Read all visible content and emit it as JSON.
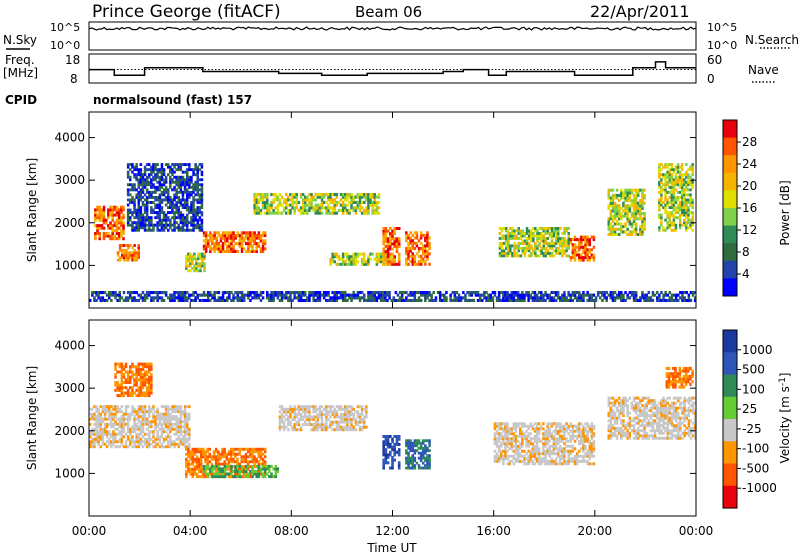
{
  "header": {
    "station": "Prince George (fitACF)",
    "beam": "Beam 06",
    "date": "22/Apr/2011"
  },
  "labels": {
    "nsky": "N.Sky",
    "nsearch": "N.Search",
    "freq": "Freq.",
    "freq_unit": "[MHz]",
    "nave": "Nave",
    "cpid": "CPID",
    "cpid_value": "normalsound (fast) 157"
  },
  "chart_data": [
    {
      "type": "line",
      "panel": "noise",
      "y_left_ticks": [
        "10^5",
        "10^0"
      ],
      "y_right_ticks": [
        "10^5",
        "10^0"
      ],
      "series": [
        {
          "name": "N.Sky",
          "style": "solid"
        },
        {
          "name": "N.Search",
          "style": "dotted"
        }
      ]
    },
    {
      "type": "line",
      "panel": "frequency",
      "y_left_ticks": [
        "18",
        "8"
      ],
      "y_right_ticks": [
        "60",
        "0"
      ],
      "series": [
        {
          "name": "Freq.",
          "style": "solid",
          "x_hours": [
            0,
            1,
            2.2,
            4.5,
            7.5,
            9.2,
            11,
            14,
            14.8,
            15.8,
            16.5,
            19.2,
            21.5,
            22.4,
            22.8,
            24
          ],
          "values_mhz": [
            13,
            10,
            14,
            12,
            11,
            10,
            11,
            12,
            13,
            10,
            12,
            10,
            14,
            17,
            14,
            14
          ]
        },
        {
          "name": "Nave",
          "style": "dotted",
          "x_hours": [
            0,
            24
          ],
          "values": [
            28,
            28
          ]
        }
      ]
    },
    {
      "type": "heatmap",
      "panel": "power",
      "xlabel": "",
      "ylabel": "Slant Range [km]",
      "xlim_hours": [
        0,
        24
      ],
      "ylim": [
        0,
        4600
      ],
      "yticks": [
        1000,
        2000,
        3000,
        4000
      ],
      "colorbar": {
        "label": "Power [dB]",
        "ticks": [
          "28",
          "24",
          "20",
          "16",
          "12",
          "8",
          "4"
        ],
        "colors": [
          "#e8000c",
          "#ff5500",
          "#ff9500",
          "#f5b400",
          "#e0e000",
          "#7fd04a",
          "#2e8b57",
          "#2e6b3e",
          "#2244aa",
          "#0000ff"
        ]
      },
      "regions": [
        {
          "t0": 0.2,
          "t1": 1.4,
          "r0": 1600,
          "r1": 2400,
          "level": "high"
        },
        {
          "t0": 1.1,
          "t1": 2.0,
          "r0": 1100,
          "r1": 1500,
          "level": "high"
        },
        {
          "t0": 1.5,
          "t1": 4.5,
          "r0": 1800,
          "r1": 3400,
          "level": "low"
        },
        {
          "t0": 3.8,
          "t1": 4.6,
          "r0": 850,
          "r1": 1300,
          "level": "mid"
        },
        {
          "t0": 4.5,
          "t1": 7.0,
          "r0": 1300,
          "r1": 1800,
          "level": "high"
        },
        {
          "t0": 6.5,
          "t1": 11.5,
          "r0": 2200,
          "r1": 2700,
          "level": "mid"
        },
        {
          "t0": 9.5,
          "t1": 12.0,
          "r0": 1000,
          "r1": 1300,
          "level": "mid"
        },
        {
          "t0": 11.6,
          "t1": 12.3,
          "r0": 1000,
          "r1": 1900,
          "level": "high"
        },
        {
          "t0": 12.5,
          "t1": 13.5,
          "r0": 1000,
          "r1": 1800,
          "level": "high"
        },
        {
          "t0": 16.2,
          "t1": 19.0,
          "r0": 1200,
          "r1": 1900,
          "level": "mid"
        },
        {
          "t0": 19.0,
          "t1": 20.0,
          "r0": 1100,
          "r1": 1700,
          "level": "high"
        },
        {
          "t0": 20.5,
          "t1": 22.0,
          "r0": 1700,
          "r1": 2800,
          "level": "mid"
        },
        {
          "t0": 22.5,
          "t1": 23.9,
          "r0": 1800,
          "r1": 3400,
          "level": "mid"
        },
        {
          "t0": 0.0,
          "t1": 24.0,
          "r0": 150,
          "r1": 400,
          "level": "low"
        }
      ]
    },
    {
      "type": "heatmap",
      "panel": "velocity",
      "xlabel": "Time UT",
      "ylabel": "Slant Range [km]",
      "xlim_hours": [
        0,
        24
      ],
      "ylim": [
        0,
        4600
      ],
      "xticks": [
        "00:00",
        "04:00",
        "08:00",
        "12:00",
        "16:00",
        "20:00",
        "00:00"
      ],
      "yticks": [
        1000,
        2000,
        3000,
        4000
      ],
      "colorbar": {
        "label": "Velocity [m s^-1]",
        "ticks": [
          "1000",
          "500",
          "100",
          "25",
          "-25",
          "-100",
          "-500",
          "-1000"
        ],
        "colors": [
          "#1a3aa0",
          "#2e55b8",
          "#2e8b57",
          "#66cc33",
          "#c8c8c8",
          "#ff9500",
          "#ff5500",
          "#e8000c"
        ]
      },
      "regions": [
        {
          "t0": 0.0,
          "t1": 4.0,
          "r0": 1600,
          "r1": 2600,
          "level": "-25"
        },
        {
          "t0": 1.0,
          "t1": 2.5,
          "r0": 2800,
          "r1": 3600,
          "level": "-100"
        },
        {
          "t0": 3.8,
          "t1": 7.0,
          "r0": 900,
          "r1": 1600,
          "level": "-100"
        },
        {
          "t0": 4.5,
          "t1": 7.5,
          "r0": 900,
          "r1": 1200,
          "level": "100"
        },
        {
          "t0": 7.5,
          "t1": 11.0,
          "r0": 2000,
          "r1": 2600,
          "level": "-25"
        },
        {
          "t0": 11.6,
          "t1": 12.3,
          "r0": 1100,
          "r1": 1900,
          "level": "1000"
        },
        {
          "t0": 12.5,
          "t1": 13.5,
          "r0": 1100,
          "r1": 1800,
          "level": "500"
        },
        {
          "t0": 16.0,
          "t1": 20.0,
          "r0": 1200,
          "r1": 2200,
          "level": "-25"
        },
        {
          "t0": 20.5,
          "t1": 24.0,
          "r0": 1800,
          "r1": 2800,
          "level": "-25"
        },
        {
          "t0": 22.8,
          "t1": 23.9,
          "r0": 3000,
          "r1": 3500,
          "level": "-500"
        }
      ]
    }
  ]
}
